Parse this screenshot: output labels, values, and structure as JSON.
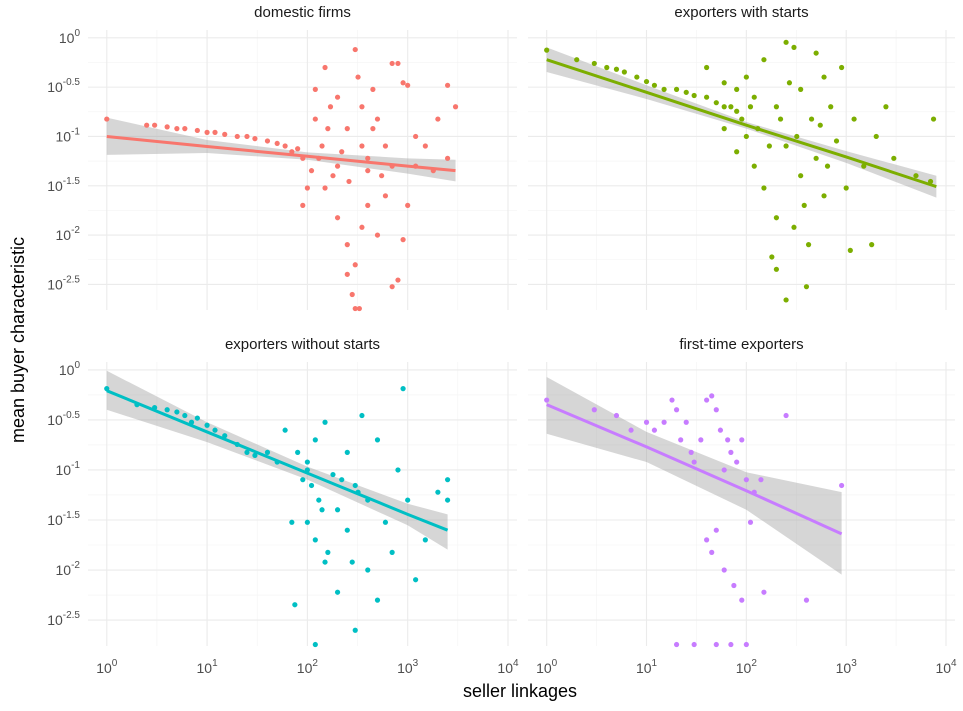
{
  "axis_titles": {
    "x": "seller linkages",
    "y": "mean buyer characteristic"
  },
  "axes": {
    "xscale": "log",
    "yscale": "log",
    "xlim": [
      0.65,
      12300
    ],
    "ylim": [
      0.00174,
      1.2
    ],
    "xticks": [
      {
        "value": 1,
        "label": "10",
        "sup": "0"
      },
      {
        "value": 10,
        "label": "10",
        "sup": "1"
      },
      {
        "value": 100,
        "label": "10",
        "sup": "2"
      },
      {
        "value": 1000,
        "label": "10",
        "sup": "3"
      },
      {
        "value": 10000,
        "label": "10",
        "sup": "4"
      }
    ],
    "yticks": [
      {
        "value": 1,
        "label": "10",
        "sup": "0"
      },
      {
        "value": 0.3162,
        "label": "10",
        "sup": "-0.5"
      },
      {
        "value": 0.1,
        "label": "10",
        "sup": "-1"
      },
      {
        "value": 0.03162,
        "label": "10",
        "sup": "-1.5"
      },
      {
        "value": 0.01,
        "label": "10",
        "sup": "-2"
      },
      {
        "value": 0.003162,
        "label": "10",
        "sup": "-2.5"
      }
    ],
    "grid": true
  },
  "chart_data": [
    {
      "type": "scatter",
      "title": "domestic firms",
      "color": "#F8766D",
      "x": [
        1,
        2.5,
        3,
        4,
        5,
        6,
        8,
        10,
        12,
        15,
        20,
        25,
        30,
        40,
        50,
        60,
        70,
        80,
        90,
        120,
        150,
        200,
        250,
        300,
        320,
        350,
        400,
        450,
        500,
        600,
        700,
        800,
        900,
        1000,
        1200,
        1500,
        2000,
        2500,
        3000,
        150,
        200,
        250,
        300,
        350,
        400,
        500,
        600,
        700,
        800,
        900,
        250,
        280,
        300,
        330,
        200,
        180,
        130,
        110,
        100,
        90,
        140,
        160,
        220,
        260,
        400,
        550,
        700,
        1200,
        1800,
        2500,
        1000,
        350,
        450,
        170,
        120
      ],
      "y": [
        0.15,
        0.13,
        0.13,
        0.125,
        0.12,
        0.12,
        0.115,
        0.11,
        0.11,
        0.105,
        0.1,
        0.1,
        0.095,
        0.09,
        0.085,
        0.08,
        0.07,
        0.075,
        0.06,
        0.3,
        0.5,
        0.25,
        0.12,
        0.76,
        0.4,
        0.2,
        0.06,
        0.3,
        0.15,
        0.08,
        0.55,
        0.55,
        0.35,
        0.33,
        0.1,
        0.08,
        0.15,
        0.33,
        0.2,
        0.03,
        0.015,
        0.008,
        0.005,
        0.012,
        0.02,
        0.01,
        0.025,
        0.003,
        0.0035,
        0.009,
        0.004,
        0.0025,
        0.0018,
        0.0018,
        0.05,
        0.04,
        0.06,
        0.045,
        0.03,
        0.02,
        0.08,
        0.12,
        0.07,
        0.035,
        0.045,
        0.04,
        0.05,
        0.05,
        0.045,
        0.06,
        0.02,
        0.08,
        0.12,
        0.2,
        0.15
      ],
      "fit": {
        "x": [
          1,
          10,
          100,
          1000,
          3000
        ],
        "y": [
          0.1,
          0.079,
          0.063,
          0.05,
          0.045
        ],
        "lower": [
          0.065,
          0.068,
          0.058,
          0.042,
          0.035
        ],
        "upper": [
          0.155,
          0.092,
          0.069,
          0.06,
          0.058
        ]
      }
    },
    {
      "type": "scatter",
      "title": "exporters with starts",
      "color": "#7CAE00",
      "x": [
        1,
        2,
        3,
        4,
        5,
        6,
        8,
        10,
        12,
        15,
        20,
        25,
        30,
        40,
        50,
        60,
        70,
        80,
        40,
        60,
        80,
        100,
        100,
        120,
        120,
        150,
        150,
        200,
        200,
        200,
        250,
        250,
        300,
        300,
        350,
        350,
        400,
        450,
        500,
        500,
        600,
        600,
        700,
        800,
        900,
        1000,
        1200,
        1500,
        1800,
        2000,
        2500,
        3000,
        5000,
        7500,
        7000,
        130,
        170,
        220,
        270,
        320,
        380,
        420,
        550,
        650,
        80,
        90,
        110,
        60,
        250,
        180,
        1100
      ],
      "y": [
        0.75,
        0.6,
        0.55,
        0.5,
        0.48,
        0.45,
        0.4,
        0.36,
        0.33,
        0.3,
        0.3,
        0.28,
        0.26,
        0.25,
        0.22,
        0.2,
        0.2,
        0.18,
        0.5,
        0.35,
        0.3,
        0.4,
        0.1,
        0.25,
        0.05,
        0.6,
        0.03,
        0.2,
        0.015,
        0.0045,
        0.9,
        0.08,
        0.8,
        0.012,
        0.3,
        0.04,
        0.003,
        0.15,
        0.7,
        0.06,
        0.4,
        0.025,
        0.2,
        0.09,
        0.5,
        0.03,
        0.15,
        0.05,
        0.008,
        0.1,
        0.2,
        0.06,
        0.04,
        0.15,
        0.035,
        0.12,
        0.08,
        0.15,
        0.35,
        0.1,
        0.02,
        0.008,
        0.13,
        0.05,
        0.07,
        0.15,
        0.2,
        0.12,
        0.0022,
        0.006,
        0.007
      ],
      "fit": {
        "x": [
          1,
          10,
          100,
          1000,
          8000
        ],
        "y": [
          0.6,
          0.28,
          0.13,
          0.062,
          0.031
        ],
        "lower": [
          0.45,
          0.24,
          0.12,
          0.054,
          0.024
        ],
        "upper": [
          0.8,
          0.33,
          0.14,
          0.071,
          0.04
        ]
      }
    },
    {
      "type": "scatter",
      "title": "exporters without starts",
      "color": "#00BFC4",
      "x": [
        1,
        2,
        3,
        4,
        5,
        6,
        7,
        8,
        10,
        12,
        15,
        20,
        25,
        30,
        40,
        50,
        60,
        80,
        90,
        100,
        100,
        100,
        110,
        120,
        120,
        130,
        150,
        150,
        180,
        200,
        200,
        250,
        250,
        300,
        300,
        350,
        400,
        400,
        500,
        500,
        600,
        700,
        800,
        900,
        1000,
        1200,
        1500,
        2000,
        2500,
        2500,
        75,
        70,
        140,
        160,
        220,
        280,
        320,
        120
      ],
      "y": [
        0.65,
        0.45,
        0.42,
        0.4,
        0.38,
        0.35,
        0.3,
        0.33,
        0.28,
        0.25,
        0.22,
        0.18,
        0.15,
        0.14,
        0.15,
        0.12,
        0.25,
        0.15,
        0.08,
        0.1,
        0.03,
        0.12,
        0.07,
        0.2,
        0.02,
        0.05,
        0.3,
        0.012,
        0.09,
        0.04,
        0.006,
        0.15,
        0.025,
        0.0025,
        0.07,
        0.35,
        0.05,
        0.01,
        0.2,
        0.005,
        0.03,
        0.015,
        0.1,
        0.65,
        0.05,
        0.008,
        0.02,
        0.06,
        0.08,
        0.05,
        0.0045,
        0.03,
        0.04,
        0.015,
        0.08,
        0.012,
        0.06,
        0.0018
      ],
      "fit": {
        "x": [
          1,
          10,
          100,
          1000,
          2500
        ],
        "y": [
          0.62,
          0.24,
          0.093,
          0.036,
          0.025
        ],
        "lower": [
          0.4,
          0.19,
          0.08,
          0.028,
          0.016
        ],
        "upper": [
          0.98,
          0.3,
          0.108,
          0.046,
          0.036
        ]
      }
    },
    {
      "type": "scatter",
      "title": "first-time exporters",
      "color": "#C77CFF",
      "x": [
        1,
        3,
        5,
        7,
        10,
        12,
        15,
        18,
        20,
        22,
        25,
        28,
        30,
        35,
        40,
        45,
        50,
        55,
        60,
        65,
        70,
        80,
        90,
        100,
        110,
        120,
        140,
        150,
        250,
        400,
        900,
        40,
        45,
        50,
        60,
        75,
        90,
        20,
        30,
        50,
        70,
        100
      ],
      "y": [
        0.5,
        0.4,
        0.35,
        0.25,
        0.3,
        0.25,
        0.3,
        0.5,
        0.4,
        0.2,
        0.3,
        0.15,
        0.12,
        0.2,
        0.5,
        0.55,
        0.4,
        0.25,
        0.1,
        0.2,
        0.15,
        0.12,
        0.2,
        0.08,
        0.03,
        0.06,
        0.08,
        0.006,
        0.35,
        0.005,
        0.07,
        0.02,
        0.015,
        0.025,
        0.01,
        0.007,
        0.005,
        0.0018,
        0.0018,
        0.0018,
        0.0018,
        0.0018
      ],
      "fit": {
        "x": [
          1,
          10,
          100,
          900
        ],
        "y": [
          0.45,
          0.17,
          0.062,
          0.023
        ],
        "lower": [
          0.23,
          0.12,
          0.04,
          0.009
        ],
        "upper": [
          0.85,
          0.24,
          0.095,
          0.06
        ]
      }
    }
  ]
}
